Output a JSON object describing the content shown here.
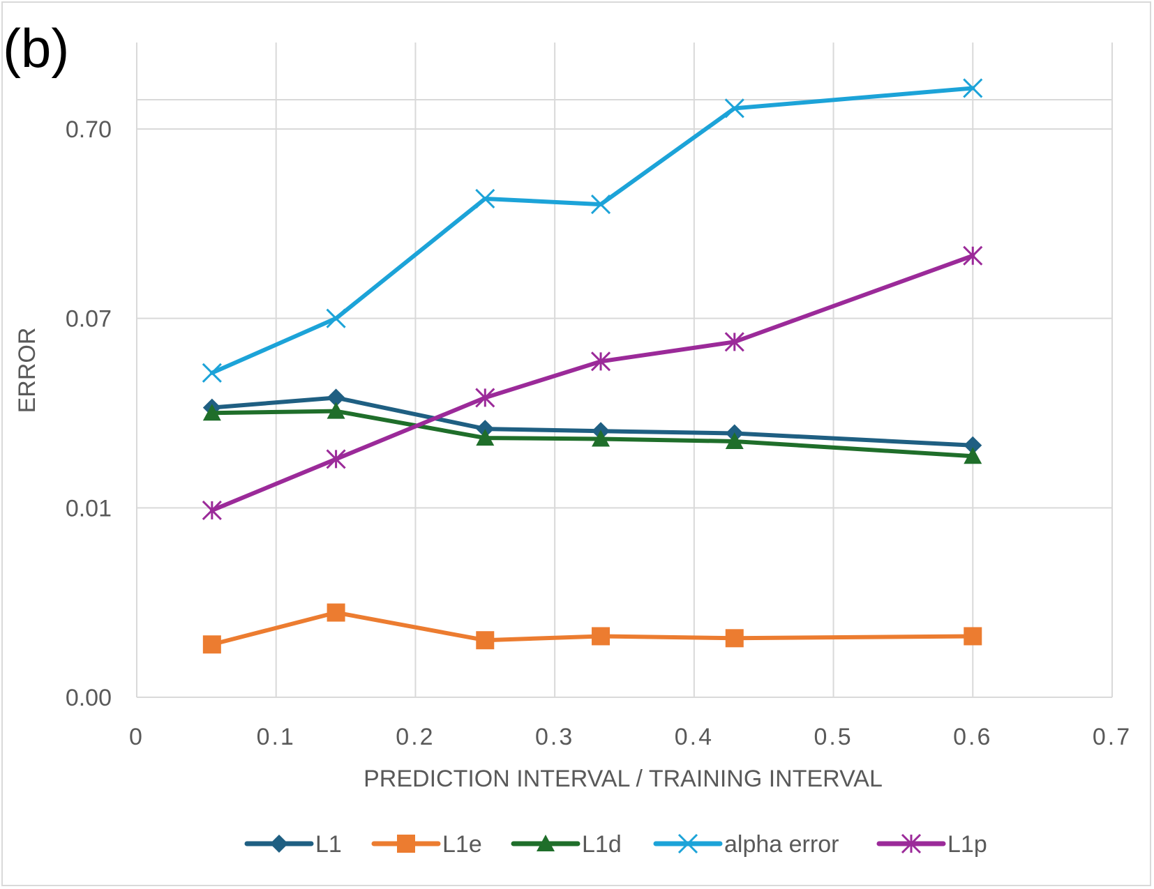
{
  "panel_label": "(b)",
  "colors": {
    "L1": "#1f5f82",
    "L1e": "#ec7c30",
    "L1d": "#1f6e2a",
    "alpha error": "#1ca3d8",
    "L1p": "#9b2a99",
    "grid": "#d9d9d9",
    "text": "#595959"
  },
  "chart_data": {
    "type": "line",
    "title": "",
    "xlabel": "PREDICTION INTERVAL / TRAINING INTERVAL",
    "ylabel": "ERROR",
    "xlim": [
      0,
      0.7
    ],
    "x_ticks": [
      0,
      0.1,
      0.2,
      0.3,
      0.4,
      0.5,
      0.6,
      0.7
    ],
    "x_tick_labels": [
      "0",
      "0.1",
      "0.2",
      "0.3",
      "0.4",
      "0.5",
      "0.6",
      "0.7"
    ],
    "y_scale": "category-like log",
    "y_ticks": [
      0.0,
      0.01,
      0.07,
      0.7
    ],
    "y_tick_labels": [
      "0.00",
      "0.01",
      "0.07",
      "0.70"
    ],
    "legend_position": "bottom",
    "series": [
      {
        "name": "L1",
        "marker": "diamond",
        "x": [
          0.054,
          0.143,
          0.25,
          0.333,
          0.429,
          0.6
        ],
        "y": [
          0.028,
          0.031,
          0.0225,
          0.022,
          0.0215,
          0.019
        ]
      },
      {
        "name": "L1e",
        "marker": "square",
        "x": [
          0.054,
          0.143,
          0.25,
          0.333,
          0.429,
          0.6
        ],
        "y": [
          0.0019,
          0.0028,
          0.002,
          0.0021,
          0.00205,
          0.0021
        ]
      },
      {
        "name": "L1d",
        "marker": "triangle",
        "x": [
          0.054,
          0.143,
          0.25,
          0.333,
          0.429,
          0.6
        ],
        "y": [
          0.0265,
          0.027,
          0.0205,
          0.0203,
          0.0198,
          0.017
        ]
      },
      {
        "name": "alpha error",
        "marker": "x",
        "x": [
          0.054,
          0.143,
          0.25,
          0.333,
          0.429,
          0.6
        ],
        "y": [
          0.04,
          0.07,
          0.3,
          0.28,
          0.9,
          1.15
        ]
      },
      {
        "name": "L1p",
        "marker": "asterisk",
        "x": [
          0.054,
          0.143,
          0.25,
          0.333,
          0.429,
          0.6
        ],
        "y": [
          0.0097,
          0.0165,
          0.031,
          0.045,
          0.055,
          0.15
        ]
      }
    ]
  }
}
